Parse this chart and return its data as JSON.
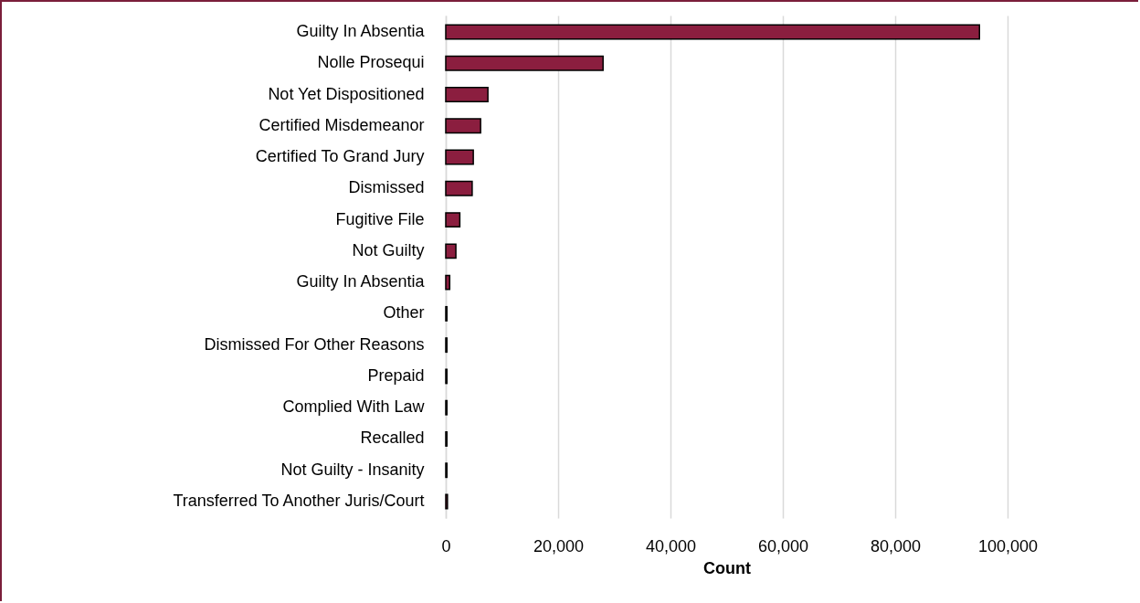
{
  "chart_data": {
    "type": "bar",
    "orientation": "horizontal",
    "xlabel": "Count",
    "categories": [
      "Guilty In Absentia",
      "Nolle Prosequi",
      "Not Yet Dispositioned",
      "Certified Misdemeanor",
      "Certified To Grand Jury",
      "Dismissed",
      "Fugitive File",
      "Not Guilty",
      "Guilty In Absentia",
      "Other",
      "Dismissed For Other Reasons",
      "Prepaid",
      "Complied With Law",
      "Recalled",
      "Not Guilty - Insanity",
      "Transferred To Another Juris/Court"
    ],
    "values": [
      95000,
      28000,
      7500,
      6200,
      4900,
      4700,
      2500,
      1800,
      700,
      200,
      200,
      200,
      200,
      200,
      200,
      300
    ],
    "color": "#8b1e3f",
    "xlim": [
      0,
      100000
    ],
    "xticks": [
      0,
      {
        "value": 20000,
        "label": "20,000"
      },
      {
        "value": 40000,
        "label": "40,000"
      },
      {
        "value": 60000,
        "label": "60,000"
      },
      {
        "value": 80000,
        "label": "80,000"
      },
      {
        "value": 100000,
        "label": "100,000"
      }
    ],
    "grid": "x"
  }
}
